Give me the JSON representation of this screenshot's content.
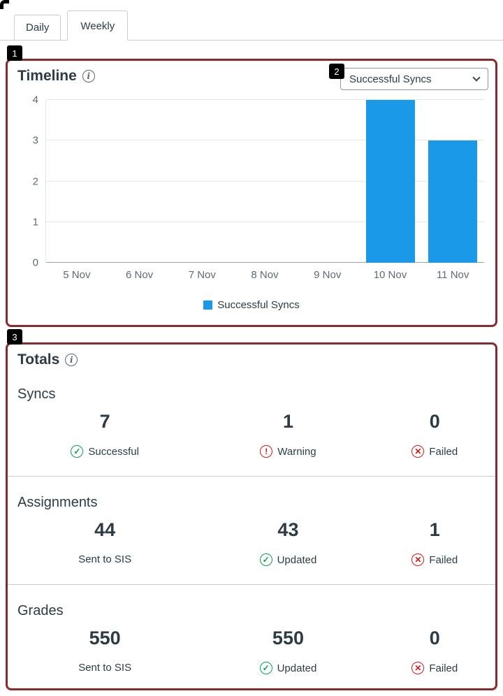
{
  "tabs": [
    {
      "label": "Daily",
      "active": false
    },
    {
      "label": "Weekly",
      "active": true
    }
  ],
  "annotations": {
    "badges": [
      "1",
      "2",
      "3"
    ],
    "border_color": "#8a2a2b"
  },
  "timeline": {
    "title": "Timeline",
    "info_glyph": "i",
    "dropdown_value": "Successful Syncs"
  },
  "chart_data": {
    "type": "bar",
    "title": "Timeline",
    "categories": [
      "5 Nov",
      "6 Nov",
      "7 Nov",
      "8 Nov",
      "9 Nov",
      "10 Nov",
      "11 Nov"
    ],
    "values": [
      0,
      0,
      0,
      0,
      0,
      4,
      3
    ],
    "series_name": "Successful Syncs",
    "legend": "Successful Syncs",
    "legend_position": "bottom",
    "ylim": [
      0,
      4
    ],
    "yticks": [
      0,
      1,
      2,
      3,
      4
    ],
    "bar_color": "#1a99e8",
    "grid": true
  },
  "totals": {
    "title": "Totals",
    "info_glyph": "i",
    "sections": [
      {
        "name": "Syncs",
        "stats": [
          {
            "value": "7",
            "label": "Successful",
            "icon": "check-circle",
            "glyph": "✓",
            "icon_color": "#0aa14e"
          },
          {
            "value": "1",
            "label": "Warning",
            "icon": "exclamation-circle",
            "glyph": "!",
            "icon_color": "#d01a19"
          },
          {
            "value": "0",
            "label": "Failed",
            "icon": "x-circle",
            "glyph": "✕",
            "icon_color": "#d01a19"
          }
        ]
      },
      {
        "name": "Assignments",
        "stats": [
          {
            "value": "44",
            "label": "Sent to SIS",
            "icon": "none"
          },
          {
            "value": "43",
            "label": "Updated",
            "icon": "check-circle",
            "glyph": "✓",
            "icon_color": "#0aa14e"
          },
          {
            "value": "1",
            "label": "Failed",
            "icon": "x-circle",
            "glyph": "✕",
            "icon_color": "#d01a19"
          }
        ]
      },
      {
        "name": "Grades",
        "stats": [
          {
            "value": "550",
            "label": "Sent to SIS",
            "icon": "none"
          },
          {
            "value": "550",
            "label": "Updated",
            "icon": "check-circle",
            "glyph": "✓",
            "icon_color": "#0aa14e"
          },
          {
            "value": "0",
            "label": "Failed",
            "icon": "x-circle",
            "glyph": "✕",
            "icon_color": "#d01a19"
          }
        ]
      }
    ]
  }
}
